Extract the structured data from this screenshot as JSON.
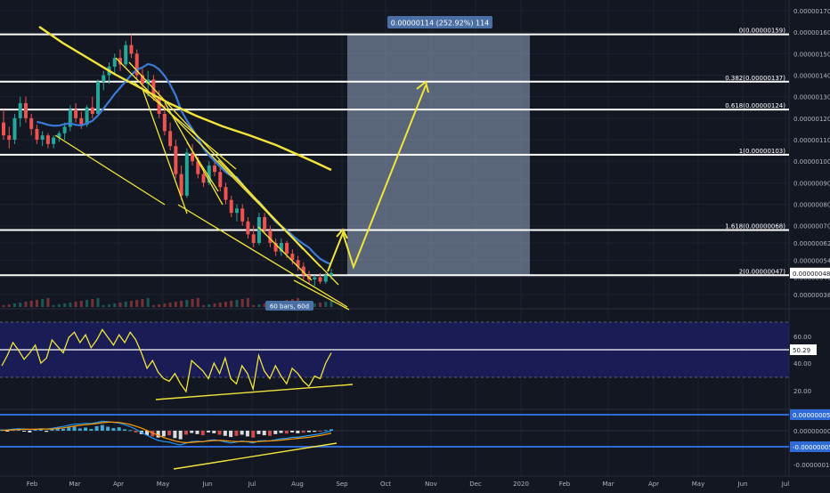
{
  "chart_data": {
    "type": "candlestick",
    "main_pane": {
      "price_ticks": [
        "0.00000170",
        "0.00000160",
        "0.00000150",
        "0.00000140",
        "0.00000130",
        "0.00000120",
        "0.00000110",
        "0.00000100",
        "0.00000090",
        "0.00000080",
        "0.00000070",
        "0.00000062",
        "0.00000054",
        "0.00000046",
        "0.00000038"
      ],
      "current_price": "0.00000048",
      "fib_levels": [
        {
          "label": "0(0.00000159)",
          "price": 1.59e-06
        },
        {
          "label": "0.382(0.00000137)",
          "price": 1.37e-06
        },
        {
          "label": "0.618(0.00000124)",
          "price": 1.24e-06
        },
        {
          "label": "1(0.00000103)",
          "price": 1.03e-06
        },
        {
          "label": "1.618(0.00000068)",
          "price": 6.8e-07
        },
        {
          "label": "2(0.00000047)",
          "price": 4.7e-07
        }
      ],
      "measure_label": "0.00000114 (252.92%) 114",
      "bars_label": "60 bars, 60d",
      "candles": [
        {
          "o": 1.18,
          "h": 1.24,
          "l": 1.1,
          "c": 1.12
        },
        {
          "o": 1.12,
          "h": 1.16,
          "l": 1.06,
          "c": 1.1
        },
        {
          "o": 1.1,
          "h": 1.22,
          "l": 1.08,
          "c": 1.2
        },
        {
          "o": 1.2,
          "h": 1.3,
          "l": 1.16,
          "c": 1.27
        },
        {
          "o": 1.27,
          "h": 1.3,
          "l": 1.18,
          "c": 1.2
        },
        {
          "o": 1.2,
          "h": 1.22,
          "l": 1.12,
          "c": 1.15
        },
        {
          "o": 1.15,
          "h": 1.17,
          "l": 1.08,
          "c": 1.1
        },
        {
          "o": 1.1,
          "h": 1.14,
          "l": 1.07,
          "c": 1.12
        },
        {
          "o": 1.12,
          "h": 1.13,
          "l": 1.06,
          "c": 1.08
        },
        {
          "o": 1.08,
          "h": 1.12,
          "l": 1.06,
          "c": 1.11
        },
        {
          "o": 1.11,
          "h": 1.14,
          "l": 1.09,
          "c": 1.13
        },
        {
          "o": 1.13,
          "h": 1.18,
          "l": 1.1,
          "c": 1.16
        },
        {
          "o": 1.16,
          "h": 1.26,
          "l": 1.14,
          "c": 1.24
        },
        {
          "o": 1.24,
          "h": 1.27,
          "l": 1.18,
          "c": 1.2
        },
        {
          "o": 1.2,
          "h": 1.23,
          "l": 1.15,
          "c": 1.17
        },
        {
          "o": 1.17,
          "h": 1.26,
          "l": 1.16,
          "c": 1.25
        },
        {
          "o": 1.25,
          "h": 1.3,
          "l": 1.2,
          "c": 1.22
        },
        {
          "o": 1.22,
          "h": 1.38,
          "l": 1.21,
          "c": 1.37
        },
        {
          "o": 1.37,
          "h": 1.42,
          "l": 1.33,
          "c": 1.4
        },
        {
          "o": 1.4,
          "h": 1.46,
          "l": 1.36,
          "c": 1.44
        },
        {
          "o": 1.44,
          "h": 1.5,
          "l": 1.4,
          "c": 1.48
        },
        {
          "o": 1.48,
          "h": 1.52,
          "l": 1.42,
          "c": 1.45
        },
        {
          "o": 1.45,
          "h": 1.56,
          "l": 1.44,
          "c": 1.54
        },
        {
          "o": 1.54,
          "h": 1.59,
          "l": 1.48,
          "c": 1.5
        },
        {
          "o": 1.5,
          "h": 1.52,
          "l": 1.38,
          "c": 1.4
        },
        {
          "o": 1.4,
          "h": 1.43,
          "l": 1.34,
          "c": 1.36
        },
        {
          "o": 1.36,
          "h": 1.42,
          "l": 1.3,
          "c": 1.38
        },
        {
          "o": 1.38,
          "h": 1.4,
          "l": 1.28,
          "c": 1.3
        },
        {
          "o": 1.3,
          "h": 1.33,
          "l": 1.2,
          "c": 1.22
        },
        {
          "o": 1.22,
          "h": 1.26,
          "l": 1.12,
          "c": 1.14
        },
        {
          "o": 1.14,
          "h": 1.18,
          "l": 1.05,
          "c": 1.07
        },
        {
          "o": 1.07,
          "h": 1.1,
          "l": 0.92,
          "c": 0.94
        },
        {
          "o": 0.94,
          "h": 0.98,
          "l": 0.82,
          "c": 0.84
        },
        {
          "o": 0.84,
          "h": 1.06,
          "l": 0.83,
          "c": 1.04
        },
        {
          "o": 1.04,
          "h": 1.08,
          "l": 0.98,
          "c": 1.0
        },
        {
          "o": 1.0,
          "h": 1.02,
          "l": 0.92,
          "c": 0.94
        },
        {
          "o": 0.94,
          "h": 0.97,
          "l": 0.88,
          "c": 0.9
        },
        {
          "o": 0.9,
          "h": 1.0,
          "l": 0.89,
          "c": 0.98
        },
        {
          "o": 0.98,
          "h": 1.01,
          "l": 0.93,
          "c": 0.95
        },
        {
          "o": 0.95,
          "h": 0.97,
          "l": 0.86,
          "c": 0.88
        },
        {
          "o": 0.88,
          "h": 0.9,
          "l": 0.8,
          "c": 0.82
        },
        {
          "o": 0.82,
          "h": 0.84,
          "l": 0.74,
          "c": 0.76
        },
        {
          "o": 0.76,
          "h": 0.8,
          "l": 0.72,
          "c": 0.78
        },
        {
          "o": 0.78,
          "h": 0.8,
          "l": 0.7,
          "c": 0.72
        },
        {
          "o": 0.72,
          "h": 0.74,
          "l": 0.64,
          "c": 0.66
        },
        {
          "o": 0.66,
          "h": 0.7,
          "l": 0.6,
          "c": 0.62
        },
        {
          "o": 0.62,
          "h": 0.76,
          "l": 0.61,
          "c": 0.74
        },
        {
          "o": 0.74,
          "h": 0.76,
          "l": 0.66,
          "c": 0.68
        },
        {
          "o": 0.68,
          "h": 0.7,
          "l": 0.6,
          "c": 0.62
        },
        {
          "o": 0.62,
          "h": 0.64,
          "l": 0.56,
          "c": 0.58
        },
        {
          "o": 0.58,
          "h": 0.64,
          "l": 0.56,
          "c": 0.62
        },
        {
          "o": 0.62,
          "h": 0.63,
          "l": 0.55,
          "c": 0.57
        },
        {
          "o": 0.57,
          "h": 0.59,
          "l": 0.52,
          "c": 0.54
        },
        {
          "o": 0.54,
          "h": 0.56,
          "l": 0.49,
          "c": 0.51
        },
        {
          "o": 0.51,
          "h": 0.53,
          "l": 0.45,
          "c": 0.47
        },
        {
          "o": 0.47,
          "h": 0.49,
          "l": 0.43,
          "c": 0.45
        },
        {
          "o": 0.45,
          "h": 0.47,
          "l": 0.42,
          "c": 0.46
        },
        {
          "o": 0.46,
          "h": 0.48,
          "l": 0.43,
          "c": 0.44
        },
        {
          "o": 0.44,
          "h": 0.48,
          "l": 0.43,
          "c": 0.47
        },
        {
          "o": 0.47,
          "h": 0.5,
          "l": 0.45,
          "c": 0.48
        }
      ]
    },
    "rsi_pane": {
      "ticks": [
        "60.00",
        "40.00",
        "20.00"
      ],
      "current": "50.29",
      "values": [
        40,
        48,
        58,
        52,
        45,
        50,
        56,
        42,
        46,
        60,
        55,
        50,
        62,
        66,
        58,
        64,
        54,
        60,
        68,
        62,
        56,
        64,
        58,
        66,
        60,
        50,
        38,
        44,
        35,
        30,
        28,
        34,
        26,
        20,
        44,
        40,
        36,
        30,
        42,
        34,
        46,
        30,
        26,
        40,
        34,
        22,
        48,
        36,
        30,
        40,
        32,
        26,
        38,
        34,
        28,
        24,
        32,
        30,
        42,
        50
      ]
    },
    "macd_pane": {
      "ticks": [
        "0.00000005",
        "0.00000000",
        "-0.00000005",
        "-0.00000010"
      ],
      "hist": [
        0.4,
        -0.2,
        0.6,
        0.8,
        -0.3,
        -0.6,
        0.3,
        0.5,
        -0.4,
        0.6,
        1.0,
        0.7,
        1.2,
        1.4,
        0.8,
        1.1,
        0.6,
        1.6,
        2.0,
        1.4,
        0.9,
        1.2,
        0.5,
        0.2,
        -0.6,
        -1.2,
        -1.6,
        -2.0,
        -2.4,
        -2.0,
        -1.6,
        -2.6,
        -3.0,
        -1.4,
        -0.8,
        -1.2,
        -1.6,
        -0.6,
        -0.9,
        -1.4,
        -1.8,
        -2.2,
        -1.8,
        -1.4,
        -2.0,
        -2.4,
        -1.2,
        -1.6,
        -1.8,
        -1.2,
        -0.8,
        -1.0,
        -0.6,
        -0.9,
        -0.7,
        -0.5,
        -0.4,
        -0.2,
        0.2,
        0.5
      ],
      "macd": [
        0.2,
        0.3,
        0.5,
        0.7,
        0.6,
        0.4,
        0.5,
        0.7,
        0.6,
        0.8,
        1.2,
        1.5,
        1.9,
        2.3,
        2.4,
        2.6,
        2.5,
        2.9,
        3.3,
        3.2,
        2.9,
        2.7,
        2.1,
        1.4,
        0.5,
        -0.6,
        -1.6,
        -2.6,
        -3.4,
        -3.8,
        -4.0,
        -4.6,
        -5.0,
        -4.4,
        -3.8,
        -3.7,
        -3.9,
        -3.4,
        -3.2,
        -3.5,
        -3.9,
        -4.3,
        -4.0,
        -3.6,
        -3.9,
        -4.3,
        -3.6,
        -3.5,
        -3.6,
        -3.2,
        -2.8,
        -2.7,
        -2.3,
        -2.3,
        -2.0,
        -1.7,
        -1.4,
        -1.1,
        -0.6,
        -0.1
      ],
      "signal": [
        0.1,
        0.2,
        0.3,
        0.4,
        0.5,
        0.5,
        0.5,
        0.6,
        0.6,
        0.6,
        0.8,
        1.0,
        1.3,
        1.6,
        1.9,
        2.1,
        2.3,
        2.5,
        2.8,
        3.0,
        3.0,
        2.9,
        2.6,
        2.2,
        1.6,
        0.9,
        0.1,
        -0.8,
        -1.6,
        -2.4,
        -3.0,
        -3.6,
        -4.0,
        -4.2,
        -4.1,
        -3.9,
        -3.8,
        -3.6,
        -3.5,
        -3.4,
        -3.5,
        -3.7,
        -3.8,
        -3.8,
        -3.8,
        -3.9,
        -3.8,
        -3.7,
        -3.6,
        -3.5,
        -3.3,
        -3.1,
        -2.9,
        -2.7,
        -2.5,
        -2.3,
        -2.0,
        -1.7,
        -1.3,
        -0.9
      ]
    },
    "x_ticks": [
      "Feb",
      "Mar",
      "Apr",
      "May",
      "Jun",
      "Jul",
      "Aug",
      "Sep",
      "Oct",
      "Nov",
      "Dec",
      "2020",
      "Feb",
      "Mar",
      "Apr",
      "May",
      "Jun",
      "Jul"
    ]
  },
  "colors": {
    "background": "#131722",
    "up": "#26a69a",
    "down": "#ef5350",
    "white_line": "#ffffff",
    "yellow": "#f2e43a",
    "blue": "#2f6bd6",
    "rsi_band": "#1c1f5e",
    "measure_box": "#9fb4d0",
    "ma_blue": "#3b7bd8",
    "macd_line": "#2196f3",
    "signal_line": "#ff9800"
  }
}
